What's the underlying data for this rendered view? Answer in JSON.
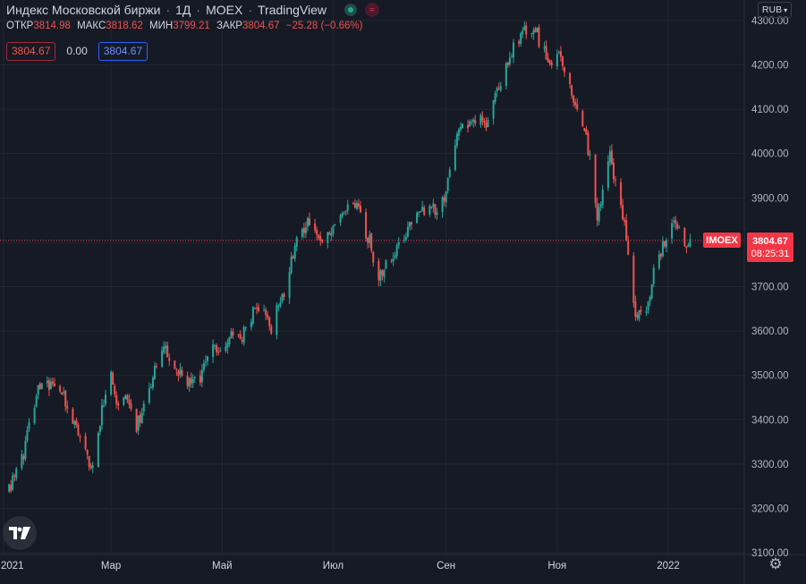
{
  "legend": {
    "title": "Индекс Московской биржи",
    "interval": "1Д",
    "exchange": "MOEX",
    "source": "TradingView"
  },
  "ohlc": {
    "open_label": "ОТКР",
    "open": "3814.98",
    "high_label": "МАКС",
    "high": "3818.62",
    "low_label": "МИН",
    "low": "3799.21",
    "close_label": "ЗАКР",
    "close": "3804.67",
    "change": "−25.28 (−0.66%)"
  },
  "quote": {
    "bid": "3804.67",
    "spread": "0.00",
    "ask": "3804.67"
  },
  "currency": "RUB",
  "price_tag": {
    "symbol": "IMOEX",
    "price": "3804.67",
    "countdown": "08:25:31"
  },
  "icons": {
    "status": "market-status-icon",
    "closed": "market-closed-icon",
    "logo": "tradingview-logo-icon",
    "settings": "settings-icon"
  },
  "colors": {
    "up": "#26A69A",
    "down": "#EF5350",
    "background": "#161A25",
    "grid": "#232733",
    "last_price": "#F23645",
    "text": "#D1D4DC"
  },
  "chart_data": {
    "type": "candlestick",
    "title": "Индекс Московской биржи",
    "ylim": [
      3080,
      4330
    ],
    "y_ticks": [
      3100,
      3200,
      3300,
      3400,
      3500,
      3600,
      3700,
      3800,
      3900,
      4000,
      4100,
      4200,
      4300
    ],
    "y_tick_labels": [
      "3100.00",
      "3200.00",
      "3300.00",
      "3400.00",
      "3500.00",
      "3600.00",
      "3700.00",
      "3800.00",
      "3900.00",
      "4000.00",
      "4100.00",
      "4200.00",
      "4300.00"
    ],
    "x_ticks": [
      {
        "label": "2021",
        "date": "2021-01-01"
      },
      {
        "label": "Мар",
        "date": "2021-03-01"
      },
      {
        "label": "Май",
        "date": "2021-05-01"
      },
      {
        "label": "Июл",
        "date": "2021-07-01"
      },
      {
        "label": "Сен",
        "date": "2021-09-01"
      },
      {
        "label": "Ноя",
        "date": "2021-11-01"
      },
      {
        "label": "2022",
        "date": "2022-01-01"
      }
    ],
    "last_price": 3804.67,
    "grid": true,
    "close_path": [
      [
        "2021-01-04",
        3240
      ],
      [
        "2021-01-12",
        3330
      ],
      [
        "2021-01-20",
        3470
      ],
      [
        "2021-01-27",
        3480
      ],
      [
        "2021-02-01",
        3460
      ],
      [
        "2021-02-08",
        3400
      ],
      [
        "2021-02-12",
        3360
      ],
      [
        "2021-02-18",
        3290
      ],
      [
        "2021-02-24",
        3420
      ],
      [
        "2021-03-01",
        3490
      ],
      [
        "2021-03-05",
        3420
      ],
      [
        "2021-03-09",
        3460
      ],
      [
        "2021-03-15",
        3370
      ],
      [
        "2021-03-22",
        3480
      ],
      [
        "2021-03-30",
        3560
      ],
      [
        "2021-04-05",
        3520
      ],
      [
        "2021-04-12",
        3490
      ],
      [
        "2021-04-19",
        3500
      ],
      [
        "2021-04-26",
        3560
      ],
      [
        "2021-05-04",
        3580
      ],
      [
        "2021-05-12",
        3590
      ],
      [
        "2021-05-20",
        3650
      ],
      [
        "2021-05-28",
        3610
      ],
      [
        "2021-06-04",
        3680
      ],
      [
        "2021-06-10",
        3790
      ],
      [
        "2021-06-17",
        3850
      ],
      [
        "2021-06-25",
        3810
      ],
      [
        "2021-07-05",
        3850
      ],
      [
        "2021-07-12",
        3890
      ],
      [
        "2021-07-19",
        3830
      ],
      [
        "2021-07-26",
        3720
      ],
      [
        "2021-08-02",
        3760
      ],
      [
        "2021-08-10",
        3820
      ],
      [
        "2021-08-17",
        3880
      ],
      [
        "2021-08-24",
        3860
      ],
      [
        "2021-08-31",
        3900
      ],
      [
        "2021-09-07",
        4040
      ],
      [
        "2021-09-15",
        4080
      ],
      [
        "2021-09-22",
        4060
      ],
      [
        "2021-09-29",
        4140
      ],
      [
        "2021-10-06",
        4220
      ],
      [
        "2021-10-13",
        4270
      ],
      [
        "2021-10-20",
        4280
      ],
      [
        "2021-10-27",
        4200
      ],
      [
        "2021-11-03",
        4220
      ],
      [
        "2021-11-10",
        4110
      ],
      [
        "2021-11-17",
        4050
      ],
      [
        "2021-11-23",
        3860
      ],
      [
        "2021-11-30",
        3990
      ],
      [
        "2021-12-06",
        3900
      ],
      [
        "2021-12-10",
        3780
      ],
      [
        "2021-12-14",
        3640
      ],
      [
        "2021-12-20",
        3640
      ],
      [
        "2021-12-24",
        3740
      ],
      [
        "2021-12-29",
        3790
      ],
      [
        "2022-01-05",
        3850
      ],
      [
        "2022-01-10",
        3790
      ],
      [
        "2022-01-13",
        3805
      ]
    ]
  }
}
